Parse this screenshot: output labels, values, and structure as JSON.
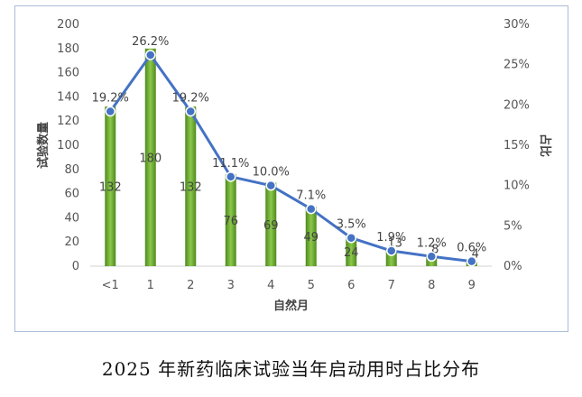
{
  "chart_data": {
    "type": "bar+line",
    "categories": [
      "<1",
      "1",
      "2",
      "3",
      "4",
      "5",
      "6",
      "7",
      "8",
      "9"
    ],
    "bar_series": {
      "values": [
        132,
        180,
        132,
        76,
        69,
        49,
        24,
        13,
        8,
        4
      ],
      "color": "#6aa832"
    },
    "line_series": {
      "values": [
        19.2,
        26.2,
        19.2,
        11.1,
        10.0,
        7.1,
        3.5,
        1.9,
        1.2,
        0.6
      ],
      "color": "#4472c4"
    },
    "value_labels": [
      "132",
      "180",
      "132",
      "76",
      "69",
      "49",
      "24",
      "13",
      "8",
      "4"
    ],
    "pct_labels": [
      "19.2%",
      "26.2%",
      "19.2%",
      "11.1%",
      "10.0%",
      "7.1%",
      "3.5%",
      "1.9%",
      "1.2%",
      "0.6%"
    ],
    "xlabel": "自然月",
    "ylabel": "试验数量",
    "y2label": "占比",
    "ylim": [
      0,
      200
    ],
    "yticks": [
      "0",
      "20",
      "40",
      "60",
      "80",
      "100",
      "120",
      "140",
      "160",
      "180",
      "200"
    ],
    "y2lim": [
      0,
      30
    ],
    "y2ticks": [
      "0%",
      "5%",
      "10%",
      "15%",
      "20%",
      "25%",
      "30%"
    ],
    "grid": false
  },
  "caption": "2025 年新药临床试验当年启动用时占比分布"
}
